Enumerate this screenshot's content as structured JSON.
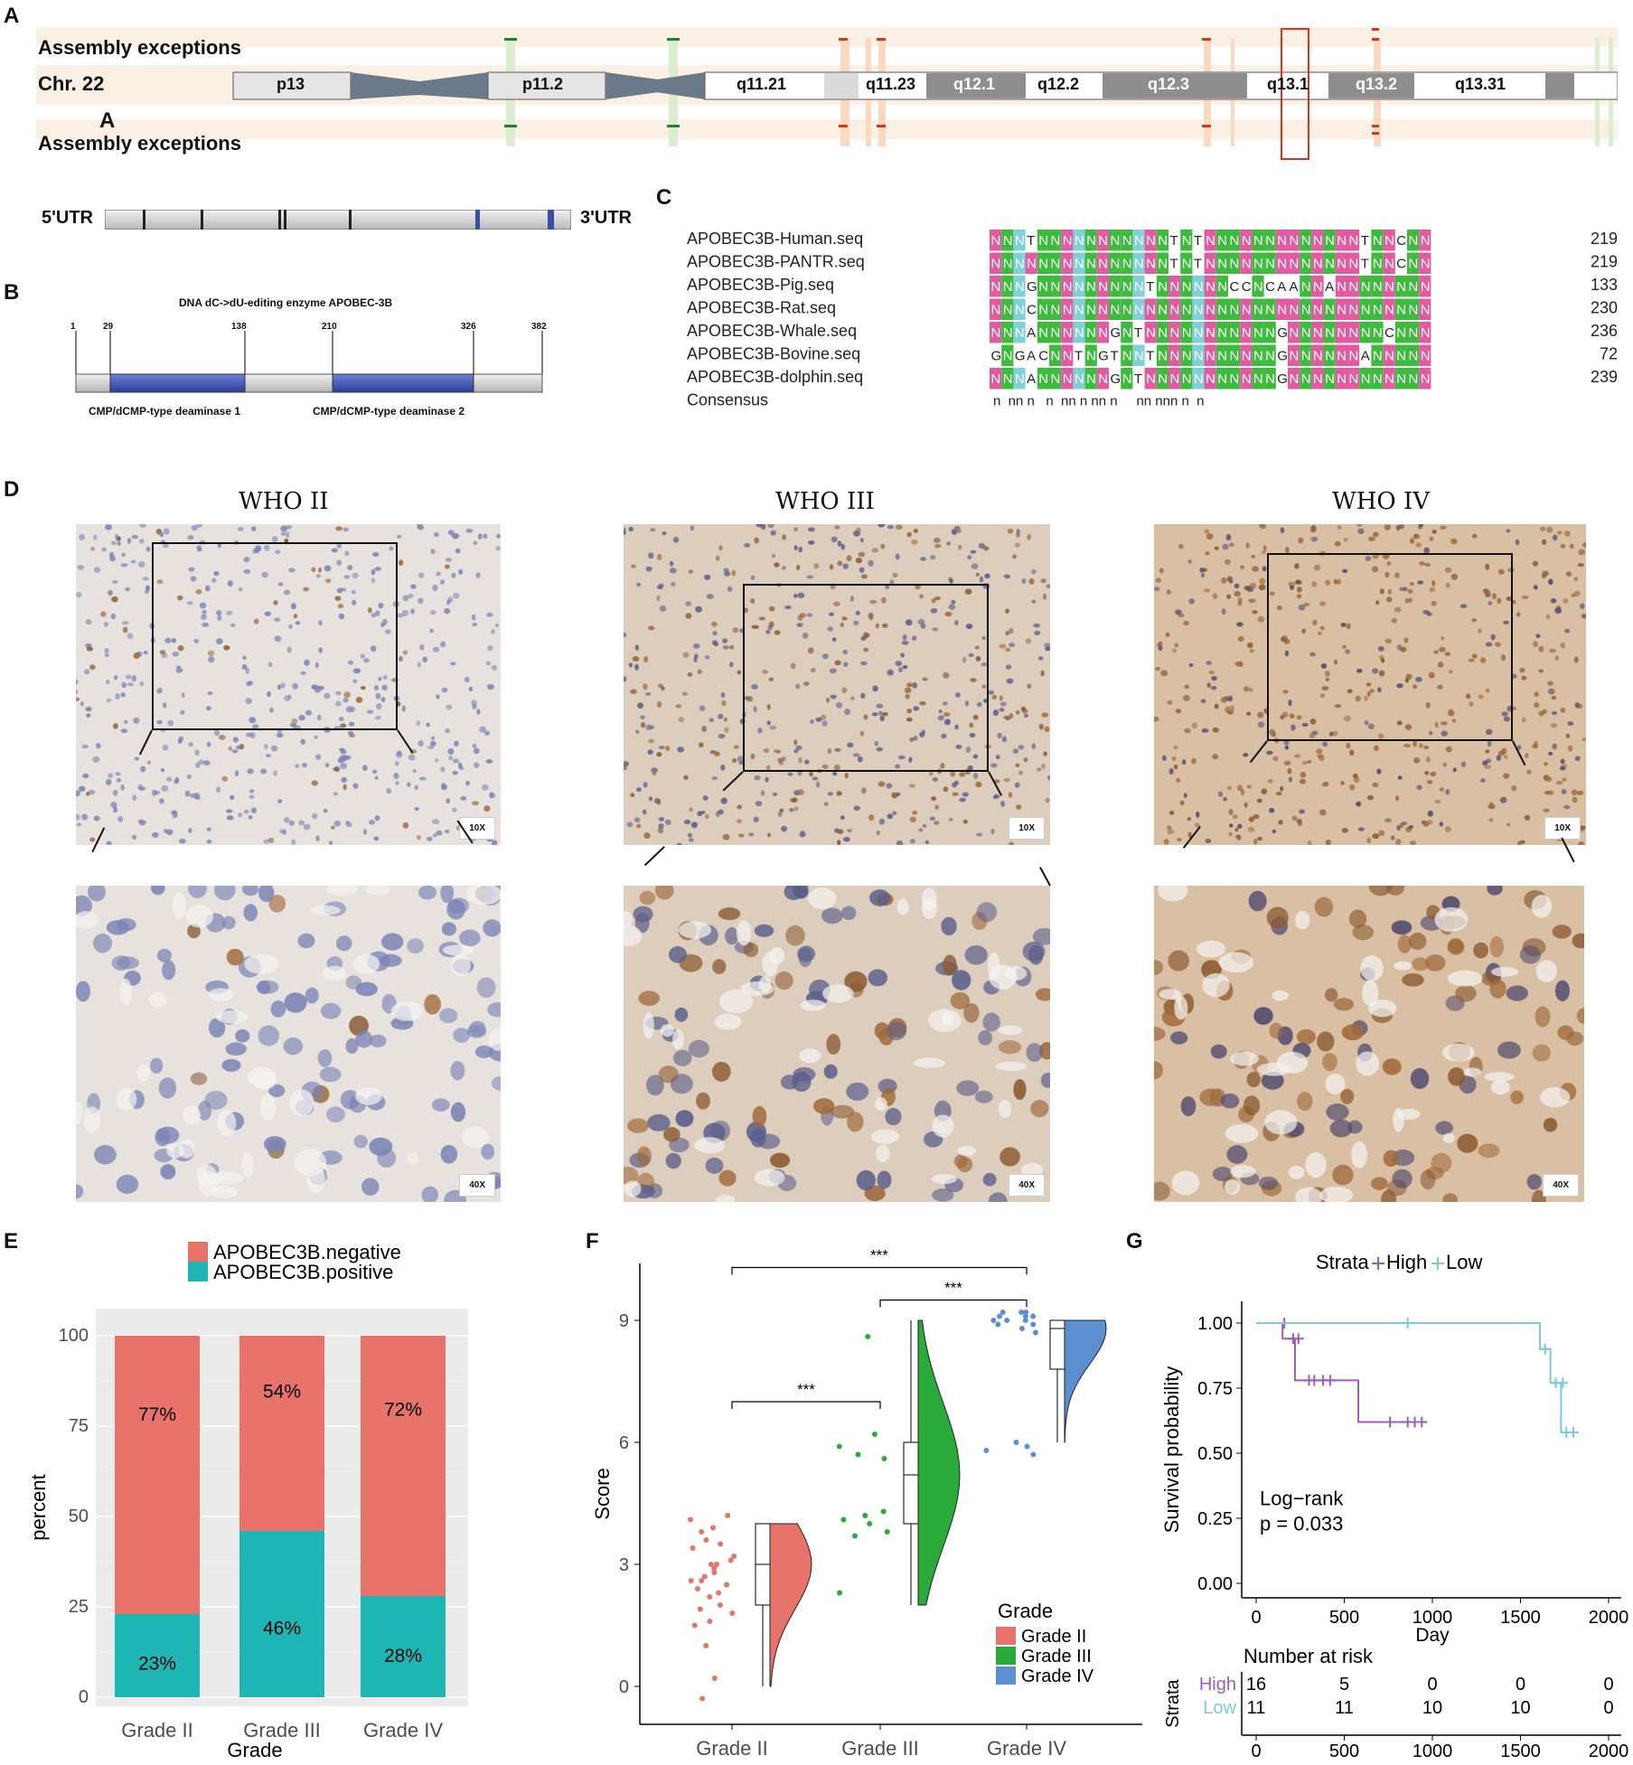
{
  "panel_labels": {
    "A": "A",
    "A2": "A",
    "B": "B",
    "C": "C",
    "D": "D",
    "E": "E",
    "F": "F",
    "G": "G"
  },
  "karyotype": {
    "exceptions_top": "Assembly exceptions",
    "exceptions_bottom": "Assembly exceptions",
    "chr": "Chr. 22",
    "bands": [
      "p13",
      "p11.2",
      "q11.21",
      "q11.23",
      "q12.1",
      "q12.2",
      "q12.3",
      "q13.1",
      "q13.2",
      "q13.31"
    ]
  },
  "gene_model": {
    "left": "5'UTR",
    "right": "3'UTR"
  },
  "protein": {
    "title": "DNA dC->dU-editing enzyme APOBEC-3B",
    "positions": [
      "1",
      "29",
      "138",
      "210",
      "326",
      "382"
    ],
    "domain1": "CMP/dCMP-type deaminase 1",
    "domain2": "CMP/dCMP-type deaminase 2"
  },
  "alignment": {
    "rows": [
      {
        "name": "APOBEC3B-Human.seq",
        "seq": "NNNTNNNNNNNNNNNTNTNNNNNNNNNNNNNTNNCNN",
        "num": "219"
      },
      {
        "name": "APOBEC3B-PANTR.seq",
        "seq": "NNNNNNNNNNNNNNNTNTNNNNNNNNNNNNNTNNCNN",
        "num": "219"
      },
      {
        "name": "APOBEC3B-Pig.seq",
        "seq": "NNNGNNNNNNNNNTNNNNNNCCNCAANNANNNNNNNN",
        "num": "133"
      },
      {
        "name": "APOBEC3B-Rat.seq",
        "seq": "NNNCNNNNNNNNNNNNNNNNNNNNNNNNNNNNNNNNN",
        "num": "230"
      },
      {
        "name": "APOBEC3B-Whale.seq",
        "seq": "NNNANNNNNNGNTNNNNNNNNNNNGNNNNNNNNCNNN",
        "num": "236"
      },
      {
        "name": "APOBEC3B-Bovine.seq",
        "seq": "GNGACNNTNGTNNTNNNNNNNNNNGNNNNNNANNNNN",
        "num": "72"
      },
      {
        "name": "APOBEC3B-dolphin.seq",
        "seq": "NNNANNNNNNGNTNNNNNNNNNNNGNNNNNNNNNNNN",
        "num": "239"
      }
    ],
    "consensus_name": "Consensus",
    "consensus": "n  nn n   n  nn n nn n     nn nnn n  n"
  },
  "ihc": {
    "titles": [
      "WHO II",
      "WHO III",
      "WHO IV"
    ],
    "mag_low": "10X",
    "mag_high": "40X"
  },
  "colors": {
    "neg": "#E8736A",
    "pos": "#1EB5B5",
    "g2": "#E8736A",
    "g3": "#2AAA3A",
    "g4": "#5B8FD0",
    "high": "#A05BB5",
    "low": "#7FC6E8",
    "hl_pink": "#E25AA0",
    "hl_green": "#3DBB3D",
    "hl_cyan": "#7FD0D8"
  },
  "chart_data": [
    {
      "type": "bar",
      "panel": "E",
      "categories": [
        "Grade II",
        "Grade III",
        "Grade IV"
      ],
      "series": [
        {
          "name": "APOBEC3B.negative",
          "values": [
            77,
            54,
            72
          ],
          "labels": [
            "77%",
            "54%",
            "72%"
          ]
        },
        {
          "name": "APOBEC3B.positive",
          "values": [
            23,
            46,
            28
          ],
          "labels": [
            "23%",
            "46%",
            "28%"
          ]
        }
      ],
      "xlabel": "Grade",
      "ylabel": "percent",
      "ylim": [
        0,
        100
      ],
      "yticks": [
        "0",
        "25",
        "50",
        "75",
        "100"
      ]
    },
    {
      "type": "scatter",
      "panel": "F",
      "categories": [
        "Grade II",
        "Grade III",
        "Grade IV"
      ],
      "xlabel": "Grade",
      "ylabel": "Score",
      "ylim": [
        0,
        10
      ],
      "yticks": [
        "0",
        "3",
        "6",
        "9"
      ],
      "legend_title": "Grade",
      "legend": [
        "Grade II",
        "Grade III",
        "Grade IV"
      ],
      "significance": [
        "***",
        "***",
        "***"
      ],
      "series": [
        {
          "name": "Grade II",
          "points": [
            4.1,
            3.9,
            3.6,
            3.4,
            3.2,
            3.0,
            3.0,
            2.9,
            2.8,
            2.7,
            2.6,
            2.5,
            2.4,
            2.2,
            2.0,
            1.8,
            1.6,
            1.5,
            3.8,
            4.2,
            3.5,
            2.3,
            0.2,
            -0.3,
            1.0,
            3.1,
            2.6,
            1.9
          ],
          "box": [
            0,
            2,
            3,
            4,
            4
          ]
        },
        {
          "name": "Grade III",
          "points": [
            8.6,
            6.2,
            5.9,
            5.7,
            4.3,
            4.2,
            4.1,
            4.0,
            3.8,
            3.7,
            5.6,
            2.3
          ],
          "box": [
            2,
            4,
            5.2,
            6,
            9
          ]
        },
        {
          "name": "Grade IV",
          "points": [
            9.2,
            9.2,
            9.1,
            9.1,
            9.0,
            9.0,
            8.9,
            8.8,
            8.7,
            9.1,
            9.0,
            8.9,
            6.0,
            5.8,
            5.7,
            5.9,
            9.2
          ],
          "box": [
            6,
            7.8,
            8.8,
            9,
            9
          ]
        }
      ]
    },
    {
      "type": "line",
      "panel": "G",
      "legend_title": "Strata",
      "legend": [
        "High",
        "Low"
      ],
      "xlabel": "Day",
      "ylabel": "Survival probability",
      "xlim": [
        0,
        2000
      ],
      "ylim": [
        0,
        1
      ],
      "xticks": [
        "0",
        "500",
        "1000",
        "1500",
        "2000"
      ],
      "yticks": [
        "0.00",
        "0.25",
        "0.50",
        "0.75",
        "1.00"
      ],
      "annotation": [
        "Log−rank",
        "p = 0.033"
      ],
      "series": [
        {
          "name": "High",
          "steps": [
            [
              0,
              1.0
            ],
            [
              150,
              1.0
            ],
            [
              150,
              0.94
            ],
            [
              220,
              0.94
            ],
            [
              220,
              0.78
            ],
            [
              580,
              0.78
            ],
            [
              580,
              0.62
            ],
            [
              960,
              0.62
            ]
          ],
          "censors": [
            [
              160,
              1.0
            ],
            [
              210,
              0.94
            ],
            [
              240,
              0.94
            ],
            [
              300,
              0.78
            ],
            [
              330,
              0.78
            ],
            [
              380,
              0.78
            ],
            [
              420,
              0.78
            ],
            [
              760,
              0.62
            ],
            [
              860,
              0.62
            ],
            [
              900,
              0.62
            ],
            [
              940,
              0.62
            ]
          ]
        },
        {
          "name": "Low",
          "steps": [
            [
              0,
              1.0
            ],
            [
              1610,
              1.0
            ],
            [
              1610,
              0.9
            ],
            [
              1670,
              0.9
            ],
            [
              1670,
              0.77
            ],
            [
              1730,
              0.77
            ],
            [
              1730,
              0.58
            ],
            [
              1830,
              0.58
            ]
          ],
          "censors": [
            [
              860,
              1.0
            ],
            [
              1640,
              0.9
            ],
            [
              1700,
              0.77
            ],
            [
              1740,
              0.77
            ],
            [
              1760,
              0.58
            ],
            [
              1800,
              0.58
            ]
          ]
        }
      ],
      "risk_table": {
        "title": "Number at risk",
        "ylabel": "Strata",
        "rows": [
          {
            "name": "High",
            "values": [
              "16",
              "5",
              "0",
              "0",
              "0"
            ]
          },
          {
            "name": "Low",
            "values": [
              "11",
              "11",
              "10",
              "10",
              "0"
            ]
          }
        ],
        "xticks": [
          "0",
          "500",
          "1000",
          "1500",
          "2000"
        ],
        "xlabel": "Day"
      }
    }
  ]
}
